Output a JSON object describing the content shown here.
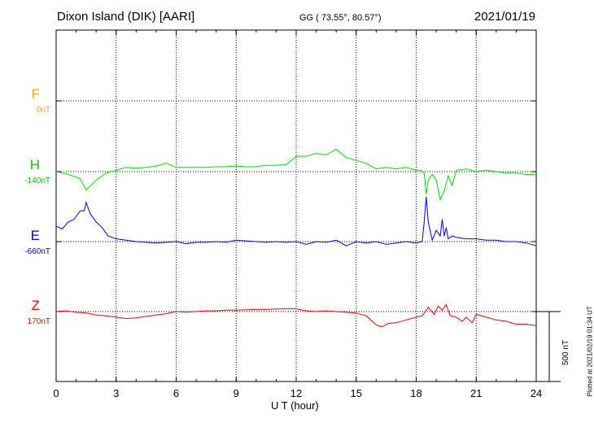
{
  "header": {
    "station": "Dixon Island (DIK)  [AARI]",
    "coords": "GG ( 73.55°,  80.57°)",
    "date": "2021/01/19"
  },
  "footer": {
    "plotted_at": "Plotted at 2021/02/19 01:34 UT"
  },
  "chart_data": {
    "type": "line",
    "xlabel": "U T (hour)",
    "xlim": [
      0,
      24
    ],
    "xticks": [
      "0",
      "3",
      "6",
      "9",
      "12",
      "15",
      "18",
      "21",
      "24"
    ],
    "scale_bar": "500 nT",
    "grid": true,
    "series": [
      {
        "name": "F",
        "baseline": "0nT",
        "color": "#FFA500",
        "x": [],
        "y": []
      },
      {
        "name": "H",
        "baseline": "-140nT",
        "color": "#00E000",
        "x": [
          0,
          0.3,
          0.6,
          0.9,
          1.2,
          1.5,
          1.8,
          2.1,
          2.5,
          3,
          3.5,
          4,
          4.5,
          5,
          5.5,
          6,
          6.5,
          7,
          7.5,
          8,
          8.5,
          9,
          9.5,
          10,
          10.5,
          11,
          11.5,
          12,
          12.5,
          13,
          13.5,
          14,
          14.5,
          15,
          15.5,
          16,
          16.5,
          17,
          17.5,
          18,
          18.2,
          18.4,
          18.5,
          18.6,
          18.8,
          19,
          19.2,
          19.4,
          19.6,
          19.8,
          20,
          20.5,
          21,
          21.5,
          22,
          22.5,
          23,
          23.5,
          24
        ],
        "y": [
          -140,
          -150,
          -160,
          -175,
          -190,
          -270,
          -230,
          -190,
          -150,
          -130,
          -110,
          -115,
          -110,
          -100,
          -80,
          -110,
          -110,
          -110,
          -110,
          -105,
          -105,
          -100,
          -105,
          -105,
          -95,
          -95,
          -90,
          -30,
          -30,
          -10,
          -20,
          20,
          -40,
          -60,
          -80,
          -120,
          -110,
          -120,
          -110,
          -130,
          -130,
          -150,
          -300,
          -200,
          -160,
          -200,
          -340,
          -280,
          -170,
          -240,
          -130,
          -120,
          -140,
          -130,
          -140,
          -150,
          -150,
          -160,
          -160
        ]
      },
      {
        "name": "E",
        "baseline": "-660nT",
        "color": "#0000FF",
        "x": [
          0,
          0.3,
          0.6,
          0.9,
          1.2,
          1.4,
          1.5,
          1.7,
          2,
          2.3,
          2.6,
          3,
          3.5,
          4,
          4.5,
          5,
          5.5,
          6,
          6.5,
          7,
          7.5,
          8,
          8.5,
          9,
          9.5,
          10,
          10.5,
          11,
          11.5,
          12,
          12.5,
          13,
          13.5,
          14,
          14.5,
          15,
          15.5,
          16,
          16.5,
          17,
          17.5,
          18,
          18.3,
          18.4,
          18.5,
          18.6,
          18.8,
          19,
          19.2,
          19.3,
          19.4,
          19.5,
          19.6,
          19.8,
          20,
          20.5,
          21,
          21.5,
          22,
          22.5,
          23,
          23.5,
          24
        ],
        "y": [
          -550,
          -570,
          -520,
          -500,
          -440,
          -440,
          -380,
          -460,
          -520,
          -560,
          -620,
          -640,
          -650,
          -660,
          -665,
          -670,
          -665,
          -660,
          -675,
          -665,
          -665,
          -660,
          -665,
          -650,
          -655,
          -660,
          -665,
          -660,
          -665,
          -660,
          -680,
          -660,
          -665,
          -650,
          -690,
          -660,
          -670,
          -660,
          -680,
          -670,
          -660,
          -670,
          -660,
          -520,
          -340,
          -520,
          -650,
          -580,
          -620,
          -500,
          -620,
          -560,
          -640,
          -620,
          -630,
          -640,
          -640,
          -650,
          -650,
          -660,
          -660,
          -670,
          -690
        ]
      },
      {
        "name": "Z",
        "baseline": "170nT",
        "color": "#FF0000",
        "x": [
          0,
          0.5,
          1,
          1.5,
          2,
          2.5,
          3,
          3.5,
          4,
          4.5,
          5,
          5.5,
          6,
          6.5,
          7,
          7.5,
          8,
          8.5,
          9,
          9.5,
          10,
          10.5,
          11,
          11.5,
          12,
          12.5,
          13,
          13.5,
          14,
          14.5,
          15,
          15.5,
          16,
          16.3,
          16.6,
          17,
          17.5,
          18,
          18.3,
          18.6,
          18.9,
          19.1,
          19.3,
          19.5,
          19.7,
          20,
          20.3,
          20.5,
          20.8,
          21,
          21.5,
          22,
          22.5,
          23,
          23.5,
          24
        ],
        "y": [
          170,
          175,
          165,
          160,
          145,
          140,
          130,
          120,
          125,
          135,
          145,
          155,
          170,
          165,
          170,
          175,
          175,
          180,
          180,
          182,
          185,
          185,
          188,
          190,
          190,
          175,
          170,
          175,
          170,
          165,
          160,
          140,
          75,
          60,
          85,
          90,
          110,
          130,
          140,
          200,
          150,
          210,
          180,
          220,
          140,
          130,
          100,
          130,
          90,
          150,
          130,
          110,
          100,
          80,
          80,
          70
        ]
      }
    ]
  }
}
